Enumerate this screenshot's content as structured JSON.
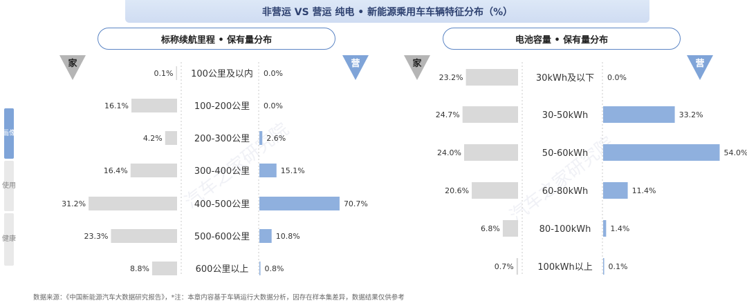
{
  "title": "非营运 VS 营运 纯电 • 新能源乘用车车辆特征分布（%）",
  "left_panel": {
    "header": "标称续航里程 • 保有量分布"
  },
  "right_panel": {
    "header": "电池容量 • 保有量分布"
  },
  "side_labels": [
    "画像",
    "使用",
    "健康"
  ],
  "watermark": "汽车之家研究院",
  "footer": "数据来源：《中国新能源汽车大数据研究报告》，*注：本章内容基于车辆运行大数据分析，因存在样本集差异，数据结果仅供参考",
  "colors": {
    "left_bar": "#d9d9d9",
    "right_bar": "#8fb0de",
    "accent": "#5a84c4"
  },
  "chart_data": [
    {
      "type": "bar",
      "title": "标称续航里程 • 保有量分布",
      "left_label": "家",
      "right_label": "营",
      "categories": [
        "100公里及以内",
        "100-200公里",
        "200-300公里",
        "300-400公里",
        "400-500公里",
        "500-600公里",
        "600公里以上"
      ],
      "series": [
        {
          "name": "家",
          "values": [
            0.1,
            16.1,
            4.2,
            16.4,
            31.2,
            23.3,
            8.8
          ],
          "labels": [
            "0.1%",
            "16.1%",
            "4.2%",
            "16.4%",
            "31.2%",
            "23.3%",
            "8.8%"
          ]
        },
        {
          "name": "营",
          "values": [
            0.0,
            0.0,
            2.6,
            15.1,
            70.7,
            10.8,
            0.8
          ],
          "labels": [
            "0.0%",
            "0.0%",
            "2.6%",
            "15.1%",
            "70.7%",
            "10.8%",
            "0.8%"
          ]
        }
      ]
    },
    {
      "type": "bar",
      "title": "电池容量 • 保有量分布",
      "left_label": "家",
      "right_label": "营",
      "categories": [
        "30kWh及以下",
        "30-50kWh",
        "50-60kWh",
        "60-80kWh",
        "80-100kWh",
        "100kWh以上"
      ],
      "series": [
        {
          "name": "家",
          "values": [
            23.2,
            24.7,
            24.0,
            20.6,
            6.8,
            0.7
          ],
          "labels": [
            "23.2%",
            "24.7%",
            "24.0%",
            "20.6%",
            "6.8%",
            "0.7%"
          ]
        },
        {
          "name": "营",
          "values": [
            0.0,
            33.2,
            54.0,
            11.4,
            1.4,
            0.1
          ],
          "labels": [
            "0.0%",
            "33.2%",
            "54.0%",
            "11.4%",
            "1.4%",
            "0.1%"
          ]
        }
      ]
    }
  ]
}
